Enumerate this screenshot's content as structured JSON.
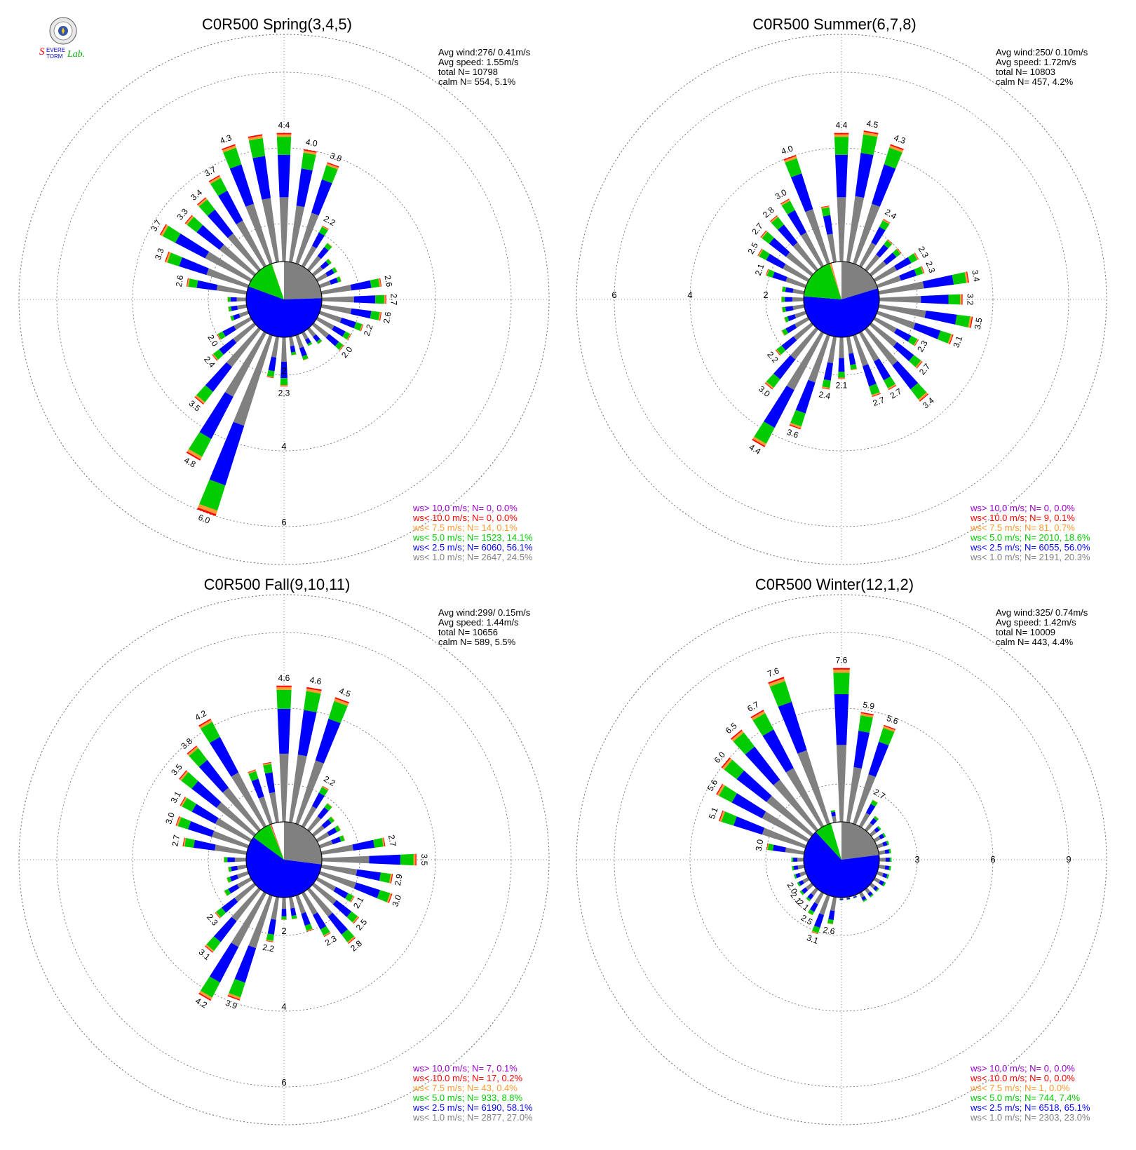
{
  "logo": {
    "text": "Severe Storm Lab."
  },
  "colors": {
    "gray": "#808080",
    "blue": "#0000ff",
    "green": "#00cc00",
    "orange": "#ff9933",
    "red": "#ff0000",
    "purple": "#9900cc",
    "ring": "#666666"
  },
  "chart_data": [
    {
      "type": "windrose",
      "title": "C0R500 Spring(3,4,5)",
      "stats": [
        "Avg wind:276/ 0.41m/s",
        "Avg speed: 1.55m/s",
        "total N=      10798",
        "calm N=    554,   5.1%"
      ],
      "ring_max": 7,
      "ring_labels": [
        "2",
        "4",
        "6"
      ],
      "legend": [
        {
          "text": "ws> 10.0 m/s; N=      0,  0.0%",
          "color": "#9900cc"
        },
        {
          "text": "ws< 10.0 m/s; N=      0,  0.0%",
          "color": "#ff0000"
        },
        {
          "text": "ws<  7.5 m/s; N=     14,  0.1%",
          "color": "#ff9933"
        },
        {
          "text": "ws<  5.0 m/s; N=  1523, 14.1%",
          "color": "#00cc00"
        },
        {
          "text": "ws<  2.5 m/s; N=  6060, 56.1%",
          "color": "#0000ff"
        },
        {
          "text": "ws<  1.0 m/s; N=  2647, 24.5%",
          "color": "#808080"
        }
      ],
      "pie": [
        24.5,
        56.1,
        14.1,
        0.1,
        0.0,
        0.0
      ],
      "values": [
        4.4,
        4.0,
        3.8,
        2.2,
        1.9,
        1.6,
        1.6,
        1.6,
        2.6,
        2.7,
        2.6,
        2.2,
        2.0,
        2.0,
        1.5,
        1.4,
        1.7,
        1.5,
        2.3,
        2.1,
        6.0,
        4.8,
        3.5,
        2.4,
        2.0,
        1.5,
        1.5,
        1.5,
        2.6,
        3.3,
        3.7,
        3.3,
        3.4,
        3.7,
        4.3,
        4.4
      ],
      "value_labels": [
        "4.4",
        "4.0",
        "3.8",
        "2.2",
        "",
        "",
        "",
        "",
        "2.6",
        "2.7",
        "2.6",
        "2.2",
        "",
        "2.0",
        "",
        "",
        "",
        "",
        "2.3",
        "",
        "6.0",
        "4.8",
        "3.5",
        "2.4",
        "2.0",
        "",
        "",
        "",
        "2.6",
        "3.3",
        "3.7",
        "3.3",
        "3.4",
        "3.7",
        "4.3",
        ""
      ]
    },
    {
      "type": "windrose",
      "title": "C0R500 Summer(6,7,8)",
      "stats": [
        "Avg wind:250/ 0.10m/s",
        "Avg speed: 1.72m/s",
        "total N=      10803",
        "calm N=    457,   4.2%"
      ],
      "ring_max": 7,
      "ring_labels": [
        "2",
        "4",
        "6"
      ],
      "legend": [
        {
          "text": "ws> 10.0 m/s; N=      0,  0.0%",
          "color": "#9900cc"
        },
        {
          "text": "ws< 10.0 m/s; N=      9,  0.1%",
          "color": "#ff0000"
        },
        {
          "text": "ws<  7.5 m/s; N=     81,  0.7%",
          "color": "#ff9933"
        },
        {
          "text": "ws<  5.0 m/s; N=  2010, 18.6%",
          "color": "#00cc00"
        },
        {
          "text": "ws<  2.5 m/s; N=  6055, 56.0%",
          "color": "#0000ff"
        },
        {
          "text": "ws<  1.0 m/s; N=  2191, 20.3%",
          "color": "#808080"
        }
      ],
      "pie": [
        20.3,
        56.0,
        18.6,
        0.7,
        0.1,
        0.0
      ],
      "values": [
        4.4,
        4.5,
        4.3,
        2.4,
        2.0,
        2.0,
        2.3,
        2.3,
        3.4,
        3.2,
        3.5,
        3.1,
        2.3,
        2.7,
        3.4,
        2.7,
        2.7,
        1.9,
        2.1,
        2.4,
        3.6,
        4.4,
        3.0,
        2.2,
        1.8,
        1.6,
        1.6,
        1.6,
        1.6,
        2.1,
        2.5,
        2.7,
        2.8,
        3.0,
        4.0,
        2.5
      ],
      "value_labels": [
        "4.4",
        "4.5",
        "4.3",
        "2.4",
        "",
        "",
        "2.3",
        "2.3",
        "3.4",
        "3.2",
        "3.5",
        "3.1",
        "2.3",
        "2.7",
        "3.4",
        "2.7",
        "2.7",
        "",
        "2.1",
        "2.4",
        "3.6",
        "4.4",
        "3.0",
        "2.2",
        "",
        "",
        "",
        "",
        "",
        "2.1",
        "2.5",
        "2.7",
        "2.8",
        "3.0",
        "4.0",
        ""
      ]
    },
    {
      "type": "windrose",
      "title": "C0R500 Fall(9,10,11)",
      "stats": [
        "Avg wind:299/ 0.15m/s",
        "Avg speed: 1.44m/s",
        "total N=      10656",
        "calm N=    589,   5.5%"
      ],
      "ring_max": 7,
      "ring_labels": [
        "2",
        "4",
        "6"
      ],
      "legend": [
        {
          "text": "ws> 10.0 m/s; N=      7,  0.1%",
          "color": "#9900cc"
        },
        {
          "text": "ws< 10.0 m/s; N=     17,  0.2%",
          "color": "#ff0000"
        },
        {
          "text": "ws<  7.5 m/s; N=     43,  0.4%",
          "color": "#ff9933"
        },
        {
          "text": "ws<  5.0 m/s; N=   933,  8.8%",
          "color": "#00cc00"
        },
        {
          "text": "ws<  2.5 m/s; N=  6190, 58.1%",
          "color": "#0000ff"
        },
        {
          "text": "ws<  1.0 m/s; N=  2877, 27.0%",
          "color": "#808080"
        }
      ],
      "pie": [
        27.0,
        58.1,
        8.8,
        0.4,
        0.2,
        0.1
      ],
      "values": [
        4.6,
        4.6,
        4.5,
        2.2,
        1.9,
        1.7,
        1.7,
        1.7,
        2.7,
        3.5,
        2.9,
        3.0,
        2.1,
        2.5,
        2.8,
        2.3,
        2.0,
        1.6,
        1.6,
        2.2,
        3.9,
        4.2,
        3.1,
        2.3,
        1.8,
        1.6,
        1.5,
        1.6,
        2.7,
        3.0,
        3.1,
        3.5,
        3.8,
        4.2,
        2.5,
        2.6
      ],
      "value_labels": [
        "4.6",
        "4.6",
        "4.5",
        "2.2",
        "",
        "",
        "",
        "",
        "2.7",
        "3.5",
        "2.9",
        "3.0",
        "2.1",
        "2.5",
        "2.8",
        "2.3",
        "",
        "",
        "",
        "2.2",
        "3.9",
        "4.2",
        "3.1",
        "2.3",
        "",
        "",
        "",
        "",
        "2.7",
        "3.0",
        "3.1",
        "3.5",
        "3.8",
        "4.2",
        "",
        ""
      ]
    },
    {
      "type": "windrose",
      "title": "C0R500 Winter(12,1,2)",
      "stats": [
        "Avg wind:325/ 0.74m/s",
        "Avg speed: 1.42m/s",
        "total N=      10009",
        "calm N=    443,   4.4%"
      ],
      "ring_max": 10.5,
      "ring_labels": [
        "3",
        "6",
        "9"
      ],
      "legend": [
        {
          "text": "ws> 10.0 m/s; N=      0,  0.0%",
          "color": "#9900cc"
        },
        {
          "text": "ws< 10.0 m/s; N=      0,  0.0%",
          "color": "#ff0000"
        },
        {
          "text": "ws<  7.5 m/s; N=      1,  0.0%",
          "color": "#ff9933"
        },
        {
          "text": "ws<  5.0 m/s; N=   744,  7.4%",
          "color": "#00cc00"
        },
        {
          "text": "ws<  2.5 m/s; N=  6518, 65.1%",
          "color": "#0000ff"
        },
        {
          "text": "ws<  1.0 m/s; N=  2303, 23.0%",
          "color": "#808080"
        }
      ],
      "pie": [
        23.0,
        65.1,
        7.4,
        0.0,
        0.0,
        0.0
      ],
      "values": [
        7.6,
        5.9,
        5.6,
        2.7,
        2.2,
        2.0,
        2.0,
        2.0,
        2.0,
        2.0,
        2.0,
        2.0,
        2.0,
        1.9,
        1.9,
        1.9,
        1.6,
        1.4,
        1.3,
        2.6,
        3.1,
        2.5,
        2.1,
        2.1,
        2.0,
        2.0,
        2.0,
        2.0,
        3.0,
        5.1,
        5.6,
        6.0,
        6.5,
        6.7,
        7.6,
        2.0
      ],
      "value_labels": [
        "7.6",
        "5.9",
        "5.6",
        "2.7",
        "",
        "",
        "",
        "",
        "",
        "",
        "",
        "",
        "",
        "",
        "",
        "",
        "",
        "",
        "",
        "2.6",
        "3.1",
        "2.5",
        "2.1",
        "2.1",
        "2.0",
        "",
        "",
        "",
        "3.0",
        "5.1",
        "5.6",
        "6.0",
        "6.5",
        "6.7",
        "7.6",
        ""
      ]
    }
  ]
}
